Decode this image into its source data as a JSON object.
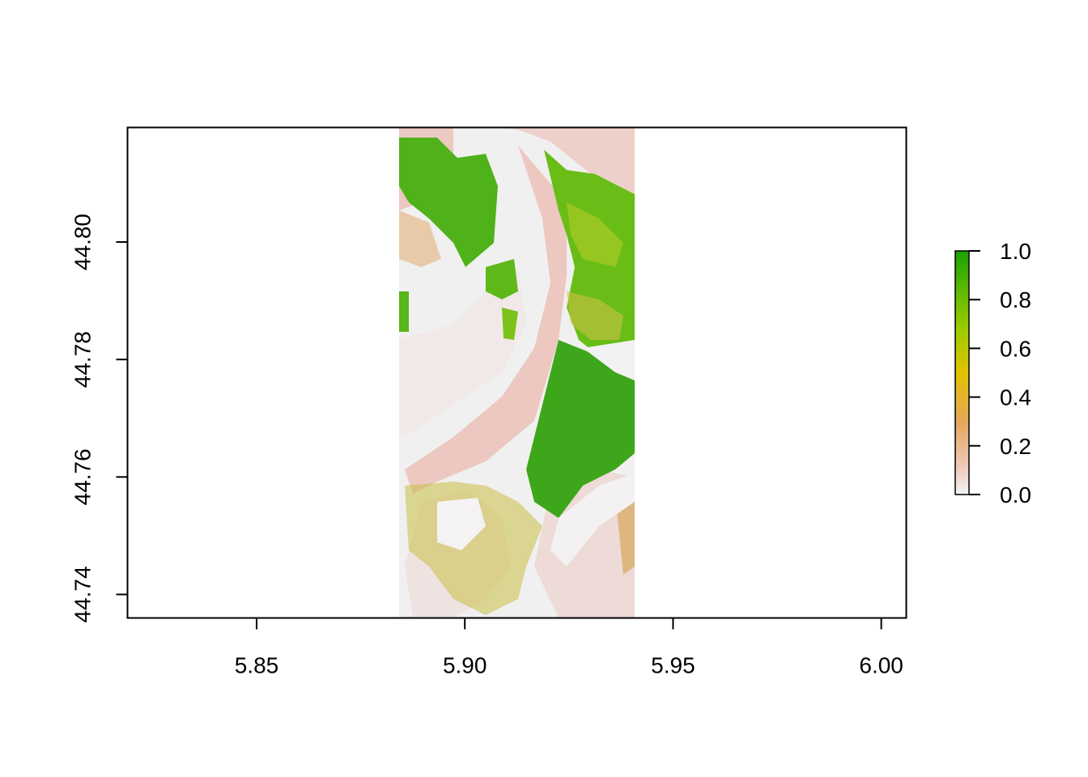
{
  "chart_data": {
    "type": "heatmap",
    "title": "",
    "xlabel": "",
    "ylabel": "",
    "xlim": [
      5.819,
      6.006
    ],
    "ylim": [
      44.736,
      44.8195
    ],
    "x_ticks": [
      "5.85",
      "5.90",
      "5.95",
      "6.00"
    ],
    "x_tick_values": [
      5.85,
      5.9,
      5.95,
      6.0
    ],
    "y_ticks": [
      "44.74",
      "44.76",
      "44.78",
      "44.80"
    ],
    "y_tick_values": [
      44.74,
      44.76,
      44.78,
      44.8
    ],
    "raster_extent": {
      "xmin": 5.8844,
      "xmax": 5.9409,
      "ymin": 44.736,
      "ymax": 44.8195
    },
    "legend": {
      "position": "right",
      "min": 0.0,
      "max": 1.0,
      "ticks": [
        "0.0",
        "0.2",
        "0.4",
        "0.6",
        "0.8",
        "1.0"
      ],
      "tick_values": [
        0.0,
        0.2,
        0.4,
        0.6,
        0.8,
        1.0
      ],
      "colors": [
        "#f2f2f2",
        "#eec8b8",
        "#e6a75a",
        "#e2c200",
        "#9ccb00",
        "#59b700",
        "#17a100"
      ]
    },
    "grid": false
  }
}
